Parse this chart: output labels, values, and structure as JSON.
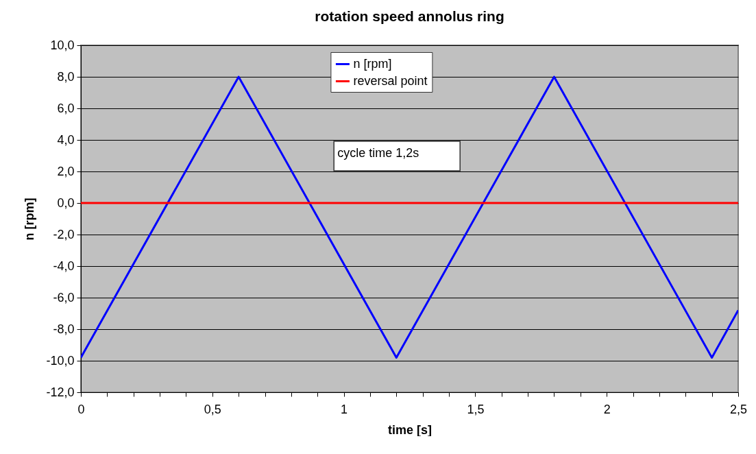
{
  "chart_data": {
    "type": "line",
    "title": "rotation speed annolus ring",
    "xlabel": "time [s]",
    "ylabel": "n [rpm]",
    "annotations": [
      "cycle time 1,2s"
    ],
    "series": [
      {
        "name": "n [rpm]",
        "color": "#0000ff",
        "x": [
          0,
          0.6,
          1.2,
          1.8,
          2.4,
          2.5
        ],
        "values": [
          -9.8,
          8,
          -9.8,
          8,
          -9.8,
          -6.8
        ]
      },
      {
        "name": "reversal point",
        "color": "#ff0000",
        "x": [
          0,
          2.5
        ],
        "values": [
          0,
          0
        ]
      }
    ],
    "xlim": [
      0,
      2.5
    ],
    "xticks": [
      0,
      {
        "value": 0.1,
        "label": null
      },
      {
        "value": 0.2,
        "label": null
      },
      {
        "value": 0.3,
        "label": null
      },
      {
        "value": 0.4,
        "label": null
      },
      {
        "value": 0.5,
        "label": "0,5"
      },
      {
        "value": 0.6,
        "label": null
      },
      {
        "value": 0.7,
        "label": null
      },
      {
        "value": 0.8,
        "label": null
      },
      {
        "value": 0.9,
        "label": null
      },
      1,
      {
        "value": 1.1,
        "label": null
      },
      {
        "value": 1.2,
        "label": null
      },
      {
        "value": 1.3,
        "label": null
      },
      {
        "value": 1.4,
        "label": null
      },
      {
        "value": 1.5,
        "label": "1,5"
      },
      {
        "value": 1.6,
        "label": null
      },
      {
        "value": 1.7,
        "label": null
      },
      {
        "value": 1.8,
        "label": null
      },
      {
        "value": 1.9,
        "label": null
      },
      2,
      {
        "value": 2.1,
        "label": null
      },
      {
        "value": 2.2,
        "label": null
      },
      {
        "value": 2.3,
        "label": null
      },
      {
        "value": 2.4,
        "label": null
      },
      {
        "value": 2.5,
        "label": "2,5"
      }
    ],
    "ylim": [
      -12,
      10
    ],
    "yticks": [
      {
        "value": -12,
        "label": "-12,0"
      },
      {
        "value": -10,
        "label": "-10,0"
      },
      {
        "value": -8,
        "label": "-8,0"
      },
      {
        "value": -6,
        "label": "-6,0"
      },
      {
        "value": -4,
        "label": "-4,0"
      },
      {
        "value": -2,
        "label": "-2,0"
      },
      {
        "value": 0,
        "label": "0,0"
      },
      {
        "value": 2,
        "label": "2,0"
      },
      {
        "value": 4,
        "label": "4,0"
      },
      {
        "value": 6,
        "label": "6,0"
      },
      {
        "value": 8,
        "label": "8,0"
      },
      {
        "value": 10,
        "label": "10,0"
      }
    ],
    "grid": "y",
    "legend": "top",
    "marker": "none",
    "line_style": "solid"
  }
}
